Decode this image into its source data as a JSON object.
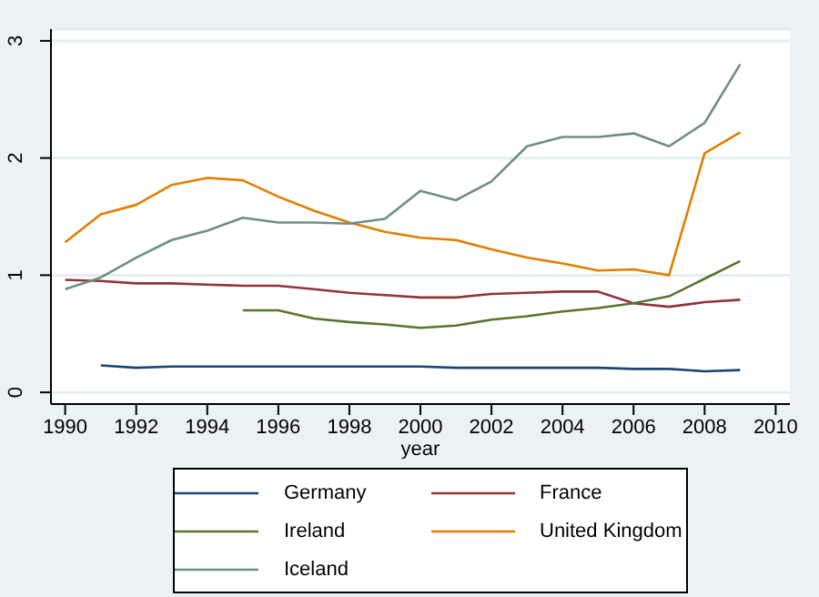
{
  "chart_data": {
    "type": "line",
    "xlabel": "year",
    "x": [
      1990,
      1991,
      1992,
      1993,
      1994,
      1995,
      1996,
      1997,
      1998,
      1999,
      2000,
      2001,
      2002,
      2003,
      2004,
      2005,
      2006,
      2007,
      2008,
      2009
    ],
    "series": [
      {
        "name": "Germany",
        "color": "#1a476f",
        "values": [
          null,
          0.23,
          0.21,
          0.22,
          0.22,
          0.22,
          0.22,
          0.22,
          0.22,
          0.22,
          0.22,
          0.21,
          0.21,
          0.21,
          0.21,
          0.21,
          0.2,
          0.2,
          0.18,
          0.19
        ]
      },
      {
        "name": "France",
        "color": "#90353b",
        "values": [
          0.96,
          0.95,
          0.93,
          0.93,
          0.92,
          0.91,
          0.91,
          0.88,
          0.85,
          0.83,
          0.81,
          0.81,
          0.84,
          0.85,
          0.86,
          0.86,
          0.76,
          0.73,
          0.77,
          0.79
        ]
      },
      {
        "name": "Ireland",
        "color": "#55752f",
        "values": [
          null,
          null,
          null,
          null,
          null,
          0.7,
          0.7,
          0.63,
          0.6,
          0.58,
          0.55,
          0.57,
          0.62,
          0.65,
          0.69,
          0.72,
          0.76,
          0.82,
          0.97,
          1.12
        ]
      },
      {
        "name": "United Kingdom",
        "color": "#e37e00",
        "values": [
          1.28,
          1.52,
          1.6,
          1.77,
          1.83,
          1.81,
          1.67,
          1.55,
          1.45,
          1.37,
          1.32,
          1.3,
          1.22,
          1.15,
          1.1,
          1.04,
          1.05,
          1.0,
          2.04,
          2.22
        ]
      },
      {
        "name": "Iceland",
        "color": "#6e8e84",
        "values": [
          0.88,
          0.98,
          1.15,
          1.3,
          1.38,
          1.49,
          1.45,
          1.45,
          1.44,
          1.48,
          1.72,
          1.64,
          1.8,
          2.1,
          2.18,
          2.18,
          2.21,
          2.1,
          2.3,
          2.8
        ]
      }
    ],
    "xlim": [
      1989.6,
      2010.4
    ],
    "xticks": [
      1990,
      1992,
      1994,
      1996,
      1998,
      2000,
      2002,
      2004,
      2006,
      2008,
      2010
    ],
    "ylim": [
      -0.1,
      3.1
    ],
    "yticks": [
      0,
      1,
      2,
      3
    ],
    "grid": "y",
    "legend": "bottom",
    "marker": "none",
    "line_style": "solid"
  }
}
